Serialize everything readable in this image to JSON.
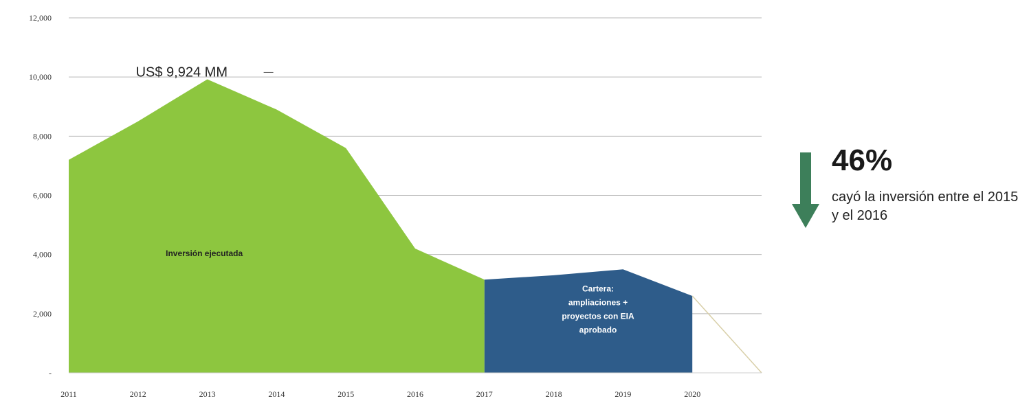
{
  "chart_data": {
    "type": "area",
    "x": [
      "2011",
      "2012",
      "2013",
      "2014",
      "2015",
      "2016",
      "2017",
      "2018",
      "2019",
      "2020"
    ],
    "yticks": [
      "-",
      "2,000",
      "4,000",
      "6,000",
      "8,000",
      "10,000",
      "12,000"
    ],
    "ylim": [
      0,
      12000
    ],
    "grid": true,
    "series": [
      {
        "name": "Inversión ejecutada",
        "color": "#8dc63f",
        "x": [
          2011,
          2012,
          2013,
          2014,
          2015,
          2016,
          2017
        ],
        "values": [
          7200,
          8500,
          9924,
          8900,
          7600,
          4200,
          3150
        ]
      },
      {
        "name": "Cartera: ampliaciones + proyectos con EIA aprobado",
        "label_lines": [
          "Cartera:",
          "ampliaciones +",
          "proyectos con EIA",
          "aprobado"
        ],
        "color": "#2e5c8a",
        "x": [
          2017,
          2018,
          2019,
          2020
        ],
        "values": [
          3150,
          3300,
          3500,
          2600
        ]
      }
    ],
    "extension_line": {
      "color": "#d8cfa8",
      "x": [
        2020,
        2021
      ],
      "values": [
        2600,
        0
      ]
    },
    "annotations": {
      "peak": "US$ 9,924 MM",
      "area_label": "Inversión ejecutada"
    }
  },
  "callout": {
    "value": "46%",
    "caption": "cayó la inversión entre el 2015 y el 2016",
    "arrow_color": "#3d7f5a"
  }
}
